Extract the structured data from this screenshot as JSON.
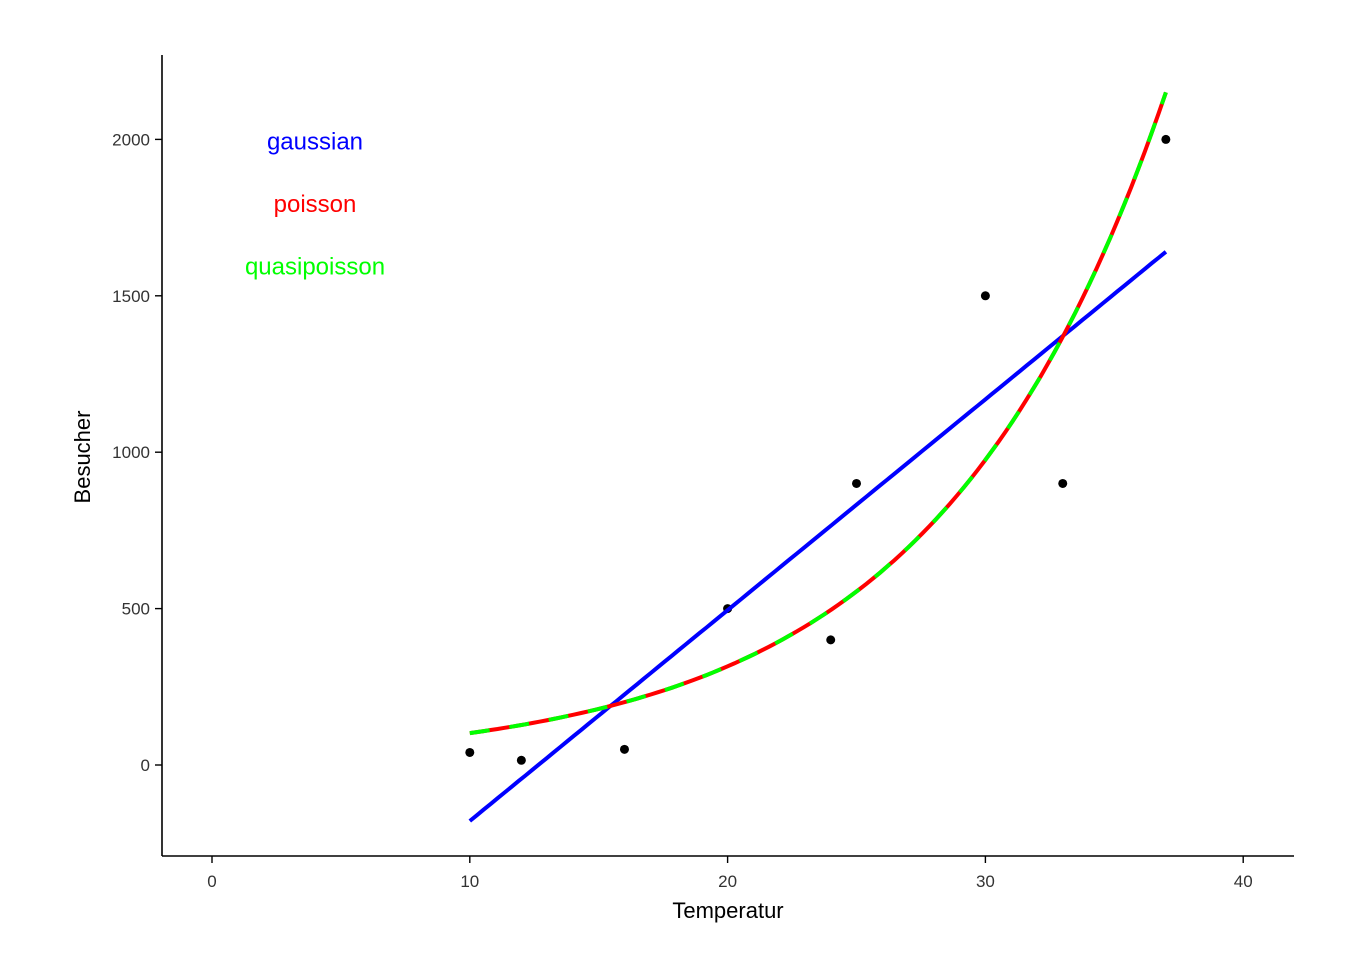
{
  "chart_data": {
    "type": "scatter",
    "title": "",
    "xlabel": "Temperatur",
    "ylabel": "Besucher",
    "xlim": [
      -2,
      42
    ],
    "ylim": [
      -290,
      2270
    ],
    "xticks": [
      0,
      10,
      20,
      30,
      40
    ],
    "yticks": [
      0,
      500,
      1000,
      1500,
      2000
    ],
    "grid": false,
    "points": {
      "x": [
        10,
        12,
        16,
        20,
        24,
        25,
        30,
        33,
        37
      ],
      "y": [
        40,
        15,
        50,
        500,
        400,
        900,
        1500,
        900,
        2000
      ],
      "color": "#000000"
    },
    "series": [
      {
        "name": "gaussian",
        "kind": "linear",
        "intercept": -853,
        "slope": 67.4,
        "x_range": [
          10,
          37
        ],
        "color": "#0000ff",
        "dash": false
      },
      {
        "name": "poisson",
        "kind": "exp",
        "intercept": 3.496,
        "slope": 0.1129,
        "x_range": [
          10,
          37
        ],
        "color": "#ff0000",
        "dash": false
      },
      {
        "name": "quasipoisson",
        "kind": "exp",
        "intercept": 3.496,
        "slope": 0.1129,
        "x_range": [
          10,
          37
        ],
        "color": "#00ff00",
        "dash": true
      }
    ],
    "annotations": [
      {
        "text": "gaussian",
        "color": "#0000ff",
        "x": 4,
        "y": 2000
      },
      {
        "text": "poisson",
        "color": "#ff0000",
        "x": 4,
        "y": 1800
      },
      {
        "text": "quasipoisson",
        "color": "#00ff00",
        "x": 4,
        "y": 1600
      }
    ]
  }
}
